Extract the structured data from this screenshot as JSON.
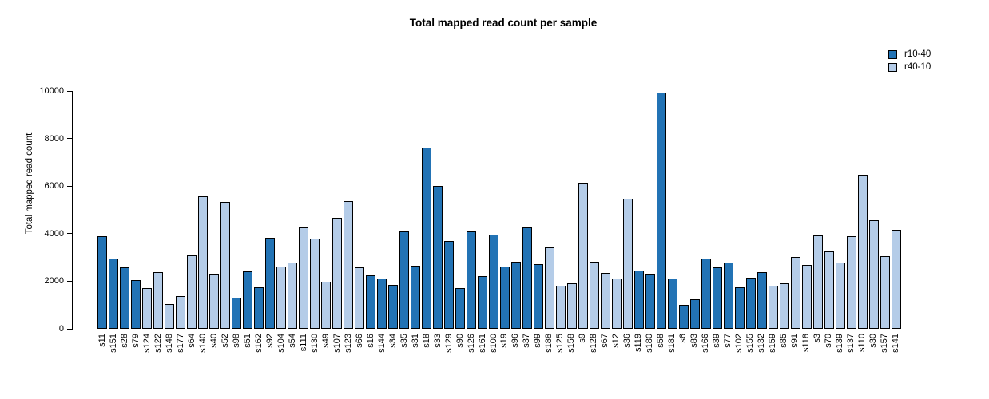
{
  "title": "Total mapped read count per sample",
  "y_axis": {
    "label": "Total mapped read count",
    "ticks": [
      0,
      2000,
      4000,
      6000,
      8000,
      10000
    ],
    "max": 10000
  },
  "legend": {
    "items": [
      {
        "label": "r10-40",
        "color": "#2273B5"
      },
      {
        "label": "r40-10",
        "color": "#B4CCE8"
      }
    ]
  },
  "chart_data": {
    "type": "bar",
    "title": "Total mapped read count per sample",
    "xlabel": "",
    "ylabel": "Total mapped read count",
    "ylim": [
      0,
      10000
    ],
    "yticks": [
      0,
      2000,
      4000,
      6000,
      8000,
      10000
    ],
    "grid": false,
    "legend_position": "top-right",
    "series": [
      {
        "name": "r10-40",
        "color": "#2273B5"
      },
      {
        "name": "r40-10",
        "color": "#B4CCE8"
      }
    ],
    "bars": [
      {
        "sample": "s11",
        "value": 3880,
        "series": "r10-40"
      },
      {
        "sample": "s151",
        "value": 2950,
        "series": "r10-40"
      },
      {
        "sample": "s28",
        "value": 2570,
        "series": "r10-40"
      },
      {
        "sample": "s79",
        "value": 2060,
        "series": "r10-40"
      },
      {
        "sample": "s124",
        "value": 1700,
        "series": "r40-10"
      },
      {
        "sample": "s122",
        "value": 2390,
        "series": "r40-10"
      },
      {
        "sample": "s148",
        "value": 1050,
        "series": "r40-10"
      },
      {
        "sample": "s177",
        "value": 1380,
        "series": "r40-10"
      },
      {
        "sample": "s64",
        "value": 3100,
        "series": "r40-10"
      },
      {
        "sample": "s140",
        "value": 5570,
        "series": "r40-10"
      },
      {
        "sample": "s40",
        "value": 2310,
        "series": "r40-10"
      },
      {
        "sample": "s52",
        "value": 5320,
        "series": "r40-10"
      },
      {
        "sample": "s98",
        "value": 1320,
        "series": "r10-40"
      },
      {
        "sample": "s51",
        "value": 2420,
        "series": "r10-40"
      },
      {
        "sample": "s162",
        "value": 1740,
        "series": "r10-40"
      },
      {
        "sample": "s92",
        "value": 3810,
        "series": "r10-40"
      },
      {
        "sample": "s104",
        "value": 2610,
        "series": "r40-10"
      },
      {
        "sample": "s54",
        "value": 2780,
        "series": "r40-10"
      },
      {
        "sample": "s111",
        "value": 4260,
        "series": "r40-10"
      },
      {
        "sample": "s130",
        "value": 3790,
        "series": "r40-10"
      },
      {
        "sample": "s49",
        "value": 1970,
        "series": "r40-10"
      },
      {
        "sample": "s107",
        "value": 4650,
        "series": "r40-10"
      },
      {
        "sample": "s123",
        "value": 5370,
        "series": "r40-10"
      },
      {
        "sample": "s66",
        "value": 2600,
        "series": "r40-10"
      },
      {
        "sample": "s16",
        "value": 2250,
        "series": "r10-40"
      },
      {
        "sample": "s144",
        "value": 2100,
        "series": "r10-40"
      },
      {
        "sample": "s34",
        "value": 1830,
        "series": "r10-40"
      },
      {
        "sample": "s35",
        "value": 4080,
        "series": "r10-40"
      },
      {
        "sample": "s31",
        "value": 2660,
        "series": "r10-40"
      },
      {
        "sample": "s18",
        "value": 7630,
        "series": "r10-40"
      },
      {
        "sample": "s33",
        "value": 6000,
        "series": "r10-40"
      },
      {
        "sample": "s129",
        "value": 3700,
        "series": "r10-40"
      },
      {
        "sample": "s90",
        "value": 1700,
        "series": "r10-40"
      },
      {
        "sample": "s126",
        "value": 4100,
        "series": "r10-40"
      },
      {
        "sample": "s161",
        "value": 2230,
        "series": "r10-40"
      },
      {
        "sample": "s100",
        "value": 3960,
        "series": "r10-40"
      },
      {
        "sample": "s19",
        "value": 2620,
        "series": "r10-40"
      },
      {
        "sample": "s96",
        "value": 2820,
        "series": "r10-40"
      },
      {
        "sample": "s37",
        "value": 4260,
        "series": "r10-40"
      },
      {
        "sample": "s99",
        "value": 2730,
        "series": "r10-40"
      },
      {
        "sample": "s188",
        "value": 3430,
        "series": "r40-10"
      },
      {
        "sample": "s125",
        "value": 1800,
        "series": "r40-10"
      },
      {
        "sample": "s158",
        "value": 1900,
        "series": "r40-10"
      },
      {
        "sample": "s9",
        "value": 6140,
        "series": "r40-10"
      },
      {
        "sample": "s128",
        "value": 2830,
        "series": "r40-10"
      },
      {
        "sample": "s67",
        "value": 2340,
        "series": "r40-10"
      },
      {
        "sample": "s12",
        "value": 2100,
        "series": "r40-10"
      },
      {
        "sample": "s36",
        "value": 5470,
        "series": "r40-10"
      },
      {
        "sample": "s119",
        "value": 2460,
        "series": "r10-40"
      },
      {
        "sample": "s180",
        "value": 2330,
        "series": "r10-40"
      },
      {
        "sample": "s58",
        "value": 9930,
        "series": "r10-40"
      },
      {
        "sample": "s181",
        "value": 2120,
        "series": "r10-40"
      },
      {
        "sample": "s6",
        "value": 1000,
        "series": "r10-40"
      },
      {
        "sample": "s83",
        "value": 1250,
        "series": "r10-40"
      },
      {
        "sample": "s166",
        "value": 2950,
        "series": "r10-40"
      },
      {
        "sample": "s39",
        "value": 2580,
        "series": "r10-40"
      },
      {
        "sample": "s77",
        "value": 2770,
        "series": "r10-40"
      },
      {
        "sample": "s102",
        "value": 1750,
        "series": "r10-40"
      },
      {
        "sample": "s155",
        "value": 2160,
        "series": "r10-40"
      },
      {
        "sample": "s132",
        "value": 2380,
        "series": "r10-40"
      },
      {
        "sample": "s159",
        "value": 1800,
        "series": "r40-10"
      },
      {
        "sample": "s85",
        "value": 1920,
        "series": "r40-10"
      },
      {
        "sample": "s91",
        "value": 3030,
        "series": "r40-10"
      },
      {
        "sample": "s118",
        "value": 2680,
        "series": "r40-10"
      },
      {
        "sample": "s3",
        "value": 3930,
        "series": "r40-10"
      },
      {
        "sample": "s70",
        "value": 3250,
        "series": "r40-10"
      },
      {
        "sample": "s139",
        "value": 2800,
        "series": "r40-10"
      },
      {
        "sample": "s137",
        "value": 3900,
        "series": "r40-10"
      },
      {
        "sample": "s110",
        "value": 6480,
        "series": "r40-10"
      },
      {
        "sample": "s30",
        "value": 4550,
        "series": "r40-10"
      },
      {
        "sample": "s157",
        "value": 3050,
        "series": "r40-10"
      },
      {
        "sample": "s141",
        "value": 4150,
        "series": "r40-10"
      }
    ]
  }
}
